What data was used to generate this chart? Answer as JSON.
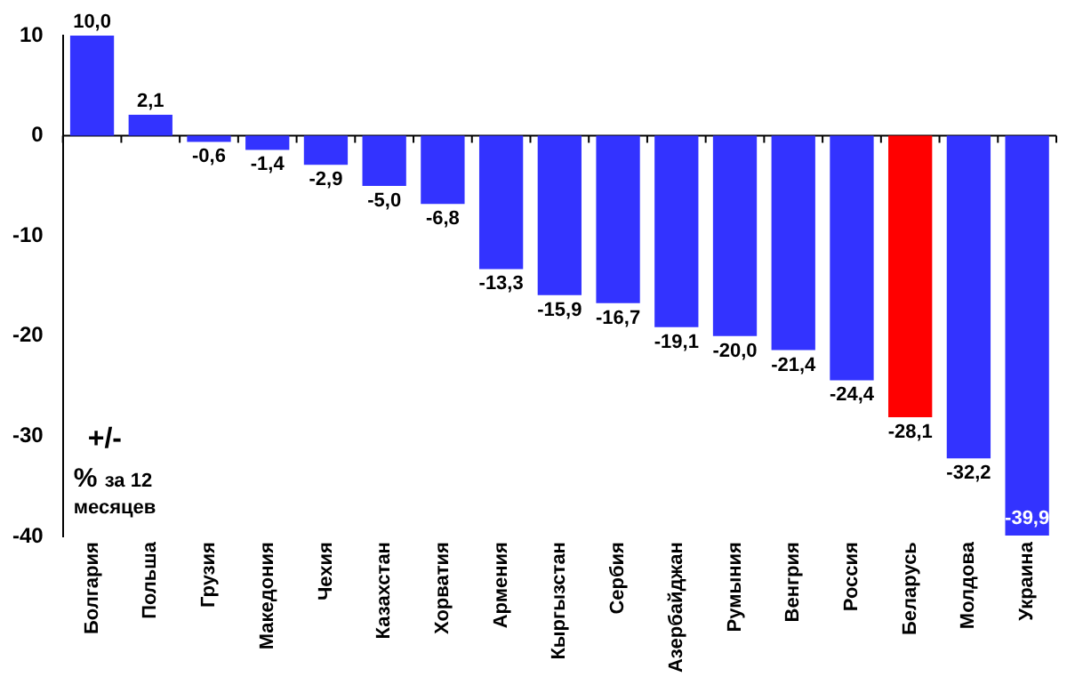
{
  "chart_data": {
    "type": "bar",
    "categories": [
      "Болгария",
      "Польша",
      "Грузия",
      "Македония",
      "Чехия",
      "Казахстан",
      "Хорватия",
      "Армения",
      "Кыргызстан",
      "Сербия",
      "Азербайджан",
      "Румыния",
      "Венгрия",
      "Россия",
      "Беларусь",
      "Молдова",
      "Украина"
    ],
    "values": [
      10.0,
      2.1,
      -0.6,
      -1.4,
      -2.9,
      -5.0,
      -6.8,
      -13.3,
      -15.9,
      -16.7,
      -19.1,
      -20.0,
      -21.4,
      -24.4,
      -28.1,
      -32.2,
      -39.9
    ],
    "colors": [
      "#3333ff",
      "#3333ff",
      "#3333ff",
      "#3333ff",
      "#3333ff",
      "#3333ff",
      "#3333ff",
      "#3333ff",
      "#3333ff",
      "#3333ff",
      "#3333ff",
      "#3333ff",
      "#3333ff",
      "#3333ff",
      "#ff0000",
      "#3333ff",
      "#3333ff"
    ],
    "value_labels": [
      "10,0",
      "2,1",
      "-0,6",
      "-1,4",
      "-2,9",
      "-5,0",
      "-6,8",
      "-13,3",
      "-15,9",
      "-16,7",
      "-19,1",
      "-20,0",
      "-21,4",
      "-24,4",
      "-28,1",
      "-32,2",
      "-39,9"
    ],
    "ylim": [
      -40,
      10
    ],
    "yticks": [
      -40,
      -30,
      -20,
      -10,
      0,
      10
    ],
    "grid": false,
    "legend": false,
    "ref_lines": [
      {
        "axis": "y",
        "value": 0
      }
    ],
    "annotations": [
      "+/-",
      "% за 12 месяцев"
    ]
  }
}
